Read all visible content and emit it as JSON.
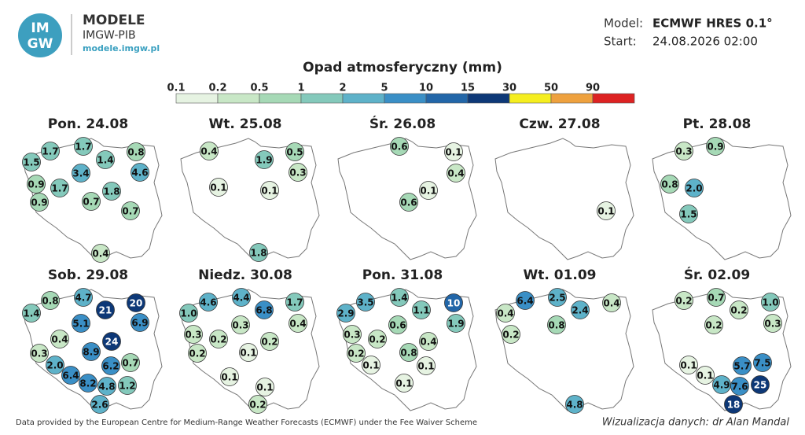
{
  "header": {
    "logo_lines": [
      "IM",
      "GW"
    ],
    "brand": "MODELE",
    "org": "IMGW-PIB",
    "url": "modele.imgw.pl",
    "model_label": "Model:",
    "model": "ECMWF HRES 0.1°",
    "start_label": "Start:",
    "start": "24.08.2026 02:00"
  },
  "legend": {
    "title": "Opad atmosferyczny (mm)",
    "ticks": [
      "0.1",
      "0.2",
      "0.5",
      "1",
      "2",
      "5",
      "10",
      "15",
      "30",
      "50",
      "90"
    ],
    "colors": [
      "#e6f3e2",
      "#c8e7c6",
      "#a6d9b6",
      "#84c9bb",
      "#5eb2c9",
      "#3a8fc6",
      "#2266a8",
      "#0d3877",
      "#f5ee1f",
      "#eea13e",
      "#dd2222"
    ]
  },
  "panels": [
    {
      "title": "Pon. 24.08",
      "values": [
        "1.7",
        "1.7",
        "0.8",
        "1.5",
        "1.4",
        "3.4",
        "4.6",
        "0.9",
        "1.7",
        "1.8",
        "0.9",
        "0.7",
        "0.7",
        "0.4"
      ]
    },
    {
      "title": "Wt. 25.08",
      "values": [
        "0.4",
        "1.9",
        "0.5",
        "0.3",
        "0.1",
        "0.1",
        "1.8"
      ]
    },
    {
      "title": "Śr. 26.08",
      "values": [
        "0.6",
        "0.1",
        "0.4",
        "0.1",
        "0.6"
      ]
    },
    {
      "title": "Czw. 27.08",
      "values": [
        "0.1"
      ]
    },
    {
      "title": "Pt. 28.08",
      "values": [
        "0.3",
        "0.9",
        "0.8",
        "2.0",
        "1.5"
      ]
    },
    {
      "title": "Sob. 29.08",
      "values": [
        "0.8",
        "4.7",
        "21",
        "20",
        "1.4",
        "5.1",
        "6.9",
        "0.4",
        "24",
        "0.3",
        "8.9",
        "2.0",
        "6.2",
        "0.7",
        "6.4",
        "8.2",
        "4.8",
        "1.2",
        "2.6"
      ]
    },
    {
      "title": "Niedz. 30.08",
      "values": [
        "4.6",
        "4.4",
        "1.7",
        "1.0",
        "6.8",
        "0.4",
        "0.3",
        "0.3",
        "0.2",
        "0.2",
        "0.2",
        "0.1",
        "0.1",
        "0.1",
        "0.2"
      ]
    },
    {
      "title": "Pon. 31.08",
      "values": [
        "3.5",
        "1.4",
        "10",
        "2.9",
        "1.1",
        "1.9",
        "0.6",
        "0.3",
        "0.2",
        "0.4",
        "0.2",
        "0.8",
        "0.1",
        "0.1",
        "0.1"
      ]
    },
    {
      "title": "Wt. 01.09",
      "values": [
        "6.4",
        "2.5",
        "0.4",
        "2.4",
        "0.4",
        "0.8",
        "0.2",
        "4.8"
      ]
    },
    {
      "title": "Śr. 02.09",
      "values": [
        "0.2",
        "0.7",
        "1.0",
        "0.2",
        "0.2",
        "0.3",
        "0.1",
        "5.7",
        "7.5",
        "0.1",
        "4.9",
        "7.6",
        "25",
        "18"
      ]
    }
  ],
  "footer": {
    "source": "Data provided by the European Centre for Medium-Range Weather Forecasts (ECMWF) under the Fee Waiver Scheme",
    "credit": "Wizualizacja danych: dr Alan Mandal"
  }
}
